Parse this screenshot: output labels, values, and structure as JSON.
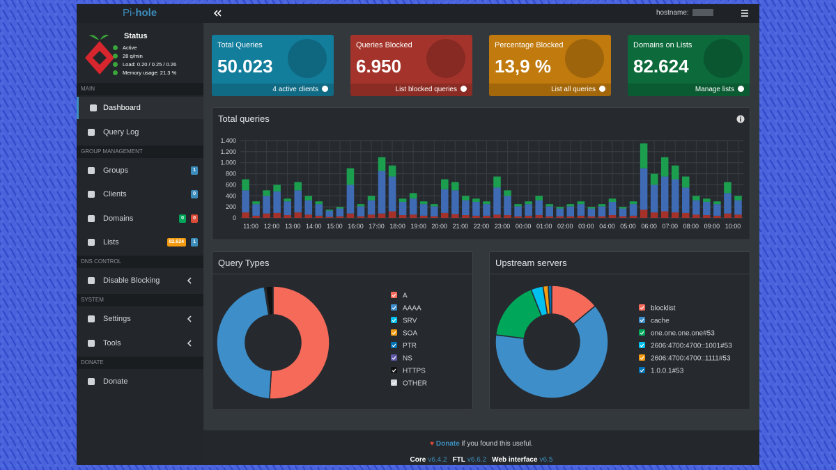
{
  "header": {
    "brand_prefix": "Pi-",
    "brand_suffix": "hole",
    "hostname_label": "hostname:"
  },
  "sidebar": {
    "status_title": "Status",
    "status": [
      "Active",
      "28 q/min",
      "Load: 0.20 / 0.25 / 0.26",
      "Memory usage: 21.3 %"
    ],
    "sections": [
      {
        "title": "MAIN",
        "items": [
          {
            "label": "Dashboard",
            "active": true
          },
          {
            "label": "Query Log"
          }
        ]
      },
      {
        "title": "GROUP MANAGEMENT",
        "items": [
          {
            "label": "Groups",
            "badges": [
              {
                "text": "1",
                "color": "#3c8dbc"
              }
            ]
          },
          {
            "label": "Clients",
            "badges": [
              {
                "text": "0",
                "color": "#3c8dbc"
              }
            ]
          },
          {
            "label": "Domains",
            "badges": [
              {
                "text": "0",
                "color": "#00a65a"
              },
              {
                "text": "0",
                "color": "#dd4b39"
              }
            ]
          },
          {
            "label": "Lists",
            "badges": [
              {
                "text": "82.624",
                "color": "#f39c12"
              },
              {
                "text": "1",
                "color": "#3c8dbc"
              }
            ]
          }
        ]
      },
      {
        "title": "DNS CONTROL",
        "items": [
          {
            "label": "Disable Blocking",
            "caret": true
          }
        ]
      },
      {
        "title": "SYSTEM",
        "items": [
          {
            "label": "Settings",
            "caret": true
          },
          {
            "label": "Tools",
            "caret": true
          }
        ]
      },
      {
        "title": "DONATE",
        "items": [
          {
            "label": "Donate"
          }
        ]
      }
    ]
  },
  "stat_boxes": [
    {
      "title": "Total Queries",
      "value": "50.023",
      "link": "4 active clients",
      "color": "#137d9c"
    },
    {
      "title": "Queries Blocked",
      "value": "6.950",
      "link": "List blocked queries",
      "color": "#a4342b"
    },
    {
      "title": "Percentage Blocked",
      "value": "13,9 %",
      "link": "List all queries",
      "color": "#c07a0e"
    },
    {
      "title": "Domains on Lists",
      "value": "82.624",
      "link": "Manage lists",
      "color": "#0c6a3b"
    }
  ],
  "chart_data": [
    {
      "type": "bar",
      "title": "Total queries",
      "stacked": true,
      "grid": true,
      "categories": [
        "11:00",
        null,
        "12:00",
        null,
        "13:00",
        null,
        "14:00",
        null,
        "15:00",
        null,
        "16:00",
        null,
        "17:00",
        null,
        "18:00",
        null,
        "19:00",
        null,
        "20:00",
        null,
        "21:00",
        null,
        "22:00",
        null,
        "23:00",
        null,
        "00:00",
        null,
        "01:00",
        null,
        "02:00",
        null,
        "03:00",
        null,
        "04:00",
        null,
        "05:00",
        null,
        "06:00",
        null,
        "07:00",
        null,
        "08:00",
        null,
        "09:00",
        null,
        "10:00",
        null
      ],
      "series": [
        {
          "color": "#a5322a",
          "values": [
            100,
            40,
            80,
            90,
            50,
            100,
            60,
            40,
            20,
            30,
            80,
            30,
            60,
            80,
            120,
            50,
            60,
            40,
            30,
            90,
            70,
            50,
            40,
            40,
            60,
            50,
            30,
            40,
            50,
            30,
            30,
            30,
            40,
            30,
            30,
            50,
            30,
            40,
            150,
            100,
            120,
            100,
            90,
            60,
            50,
            40,
            80,
            60
          ]
        },
        {
          "color": "#3f6bb5",
          "values": [
            400,
            210,
            320,
            390,
            250,
            400,
            260,
            210,
            110,
            140,
            520,
            180,
            260,
            770,
            630,
            240,
            290,
            210,
            180,
            430,
            430,
            270,
            250,
            210,
            490,
            350,
            180,
            210,
            270,
            180,
            140,
            180,
            210,
            140,
            180,
            240,
            140,
            210,
            750,
            500,
            630,
            600,
            460,
            260,
            240,
            210,
            370,
            260
          ]
        },
        {
          "color": "#1c9e4f",
          "values": [
            200,
            50,
            100,
            120,
            50,
            150,
            80,
            50,
            20,
            30,
            300,
            40,
            80,
            250,
            200,
            60,
            100,
            50,
            40,
            180,
            150,
            80,
            60,
            50,
            200,
            100,
            40,
            50,
            80,
            40,
            30,
            40,
            50,
            30,
            40,
            60,
            30,
            50,
            450,
            200,
            350,
            250,
            200,
            80,
            60,
            50,
            200,
            80
          ]
        }
      ],
      "ylim": [
        0,
        1400
      ],
      "yticks": [
        0,
        200,
        400,
        600,
        800,
        {
          "value": 1000,
          "label": "1.000"
        },
        {
          "value": 1200,
          "label": "1.200"
        },
        {
          "value": 1400,
          "label": "1.400"
        }
      ]
    },
    {
      "type": "doughnut",
      "title": "Query Types",
      "categories": [
        "A",
        "AAAA",
        "SRV",
        "SOA",
        "PTR",
        "NS",
        "HTTPS",
        "OTHER"
      ],
      "values": [
        51,
        46.5,
        0.1,
        0.1,
        0.2,
        0,
        2,
        0.1
      ],
      "colors": [
        "#f66a5a",
        "#3d8ec9",
        "#00c0ef",
        "#f39c12",
        "#0073b7",
        "#605ca8",
        "#111111",
        "#d2d6de"
      ]
    },
    {
      "type": "doughnut",
      "title": "Upstream servers",
      "categories": [
        "blocklist",
        "cache",
        "one.one.one.one#53",
        "2606:4700:4700::1001#53",
        "2606:4700:4700::1111#53",
        "1.0.0.1#53"
      ],
      "values": [
        14,
        63,
        17,
        3.5,
        1.5,
        1
      ],
      "colors": [
        "#f66a5a",
        "#3d8ec9",
        "#00a65a",
        "#00c0ef",
        "#f39c12",
        "#0073b7"
      ]
    }
  ],
  "footer": {
    "donate_link": "Donate",
    "donate_text": "if you found this useful.",
    "versions": [
      {
        "name": "Core",
        "version": "v6.4.2"
      },
      {
        "name": "FTL",
        "version": "v6.6.2"
      },
      {
        "name": "Web interface",
        "version": "v6.5"
      }
    ]
  }
}
